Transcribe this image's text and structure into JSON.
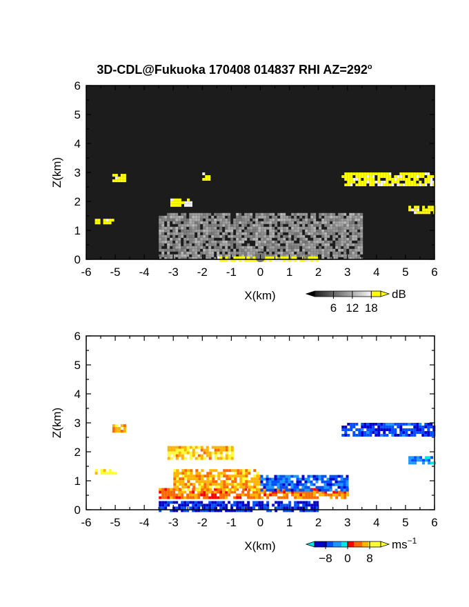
{
  "title": {
    "main": "3D-CDL@Fukuoka 170408 014837 RHI AZ=292",
    "degree": "o"
  },
  "colors": {
    "frame": "#000000",
    "reflectivity_background": "#1c1c1c",
    "reflectivity_high": "#ffff00",
    "velocity_positive": [
      "#ff0000",
      "#ff6a00",
      "#ffb400",
      "#ffff33"
    ],
    "velocity_negative": [
      "#00e6e6",
      "#1e96ff",
      "#0050ff",
      "#0000c8"
    ]
  },
  "chart_data": [
    {
      "type": "heatmap",
      "panel": "reflectivity",
      "xlabel": "X(km)",
      "ylabel": "Z(km)",
      "xlim": [
        -6,
        6
      ],
      "ylim": [
        0,
        6
      ],
      "xticks": [
        "-6",
        "-5",
        "-4",
        "-3",
        "-2",
        "-1",
        "0",
        "1",
        "2",
        "3",
        "4",
        "5",
        "6"
      ],
      "yticks": [
        "0",
        "1",
        "2",
        "3",
        "4",
        "5",
        "6"
      ],
      "colorbar": {
        "unit": "dB",
        "ticks": [
          "6",
          "12",
          "18"
        ],
        "tick_values": [
          6,
          12,
          18
        ],
        "range": [
          0,
          21
        ]
      },
      "features": [
        {
          "region": "near-ground fan of echoes around radar",
          "x": [
            -3.5,
            3.5
          ],
          "z": [
            0,
            1.6
          ],
          "value_db": 10
        },
        {
          "region": "strong echo along ground",
          "x": [
            -1.5,
            2.0
          ],
          "z": [
            0,
            0.1
          ],
          "value_db": 20
        },
        {
          "region": "cloud layer",
          "x": [
            2.8,
            6.0
          ],
          "z": [
            2.6,
            3.0
          ],
          "value_db": 20
        },
        {
          "region": "cloud patch",
          "x": [
            5.1,
            6.0
          ],
          "z": [
            1.65,
            1.85
          ],
          "value_db": 20
        },
        {
          "region": "cloud patch",
          "x": [
            -3.1,
            -2.4
          ],
          "z": [
            1.9,
            2.1
          ],
          "value_db": 20
        },
        {
          "region": "cloud patch",
          "x": [
            -5.1,
            -4.7
          ],
          "z": [
            2.75,
            2.95
          ],
          "value_db": 20
        },
        {
          "region": "cloud patch",
          "x": [
            -2.0,
            -1.8
          ],
          "z": [
            2.8,
            3.0
          ],
          "value_db": 19
        },
        {
          "region": "cloud patch",
          "x": [
            -5.7,
            -5.1
          ],
          "z": [
            1.3,
            1.4
          ],
          "value_db": 20
        }
      ]
    },
    {
      "type": "heatmap",
      "panel": "doppler_velocity",
      "xlabel": "X(km)",
      "ylabel": "Z(km)",
      "xlim": [
        -6,
        6
      ],
      "ylim": [
        0,
        6
      ],
      "xticks": [
        "-6",
        "-5",
        "-4",
        "-3",
        "-2",
        "-1",
        "0",
        "1",
        "2",
        "3",
        "4",
        "5",
        "6"
      ],
      "yticks": [
        "0",
        "1",
        "2",
        "3",
        "4",
        "5",
        "6"
      ],
      "colorbar": {
        "unit": "ms",
        "unit_exponent": "−1",
        "ticks": [
          "−8",
          "0",
          "8"
        ],
        "tick_values": [
          -8,
          0,
          8
        ],
        "range": [
          -12,
          12
        ]
      },
      "features": [
        {
          "region": "low-level outflow, positive",
          "x": [
            -3.5,
            3.0
          ],
          "z": [
            0.45,
            0.75
          ],
          "value_ms": 4
        },
        {
          "region": "warm core left of radar",
          "x": [
            -3.0,
            0.0
          ],
          "z": [
            0.7,
            1.4
          ],
          "value_ms": 6
        },
        {
          "region": "right side negative",
          "x": [
            0.0,
            3.0
          ],
          "z": [
            0.7,
            1.2
          ],
          "value_ms": -6
        },
        {
          "region": "near-ground negative",
          "x": [
            -3.5,
            2.0
          ],
          "z": [
            0.0,
            0.3
          ],
          "value_ms": -8
        },
        {
          "region": "cloud layer",
          "x": [
            2.8,
            6.0
          ],
          "z": [
            2.6,
            3.0
          ],
          "value_ms": -7
        },
        {
          "region": "cloud patch",
          "x": [
            5.1,
            6.0
          ],
          "z": [
            1.65,
            1.85
          ],
          "value_ms": -4
        },
        {
          "region": "cloud patch",
          "x": [
            -3.2,
            -1.0
          ],
          "z": [
            1.8,
            2.2
          ],
          "value_ms": 7
        },
        {
          "region": "cloud patch",
          "x": [
            -5.1,
            -4.7
          ],
          "z": [
            2.75,
            2.95
          ],
          "value_ms": 6
        },
        {
          "region": "cloud patch",
          "x": [
            -5.7,
            -5.0
          ],
          "z": [
            1.25,
            1.4
          ],
          "value_ms": 9
        }
      ]
    }
  ]
}
